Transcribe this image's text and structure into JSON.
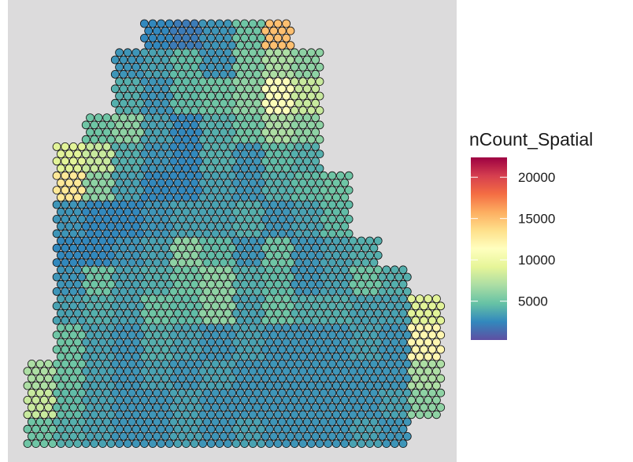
{
  "chart_data": {
    "type": "spatial",
    "legend_title": "nCount_Spatial",
    "colorbar": {
      "lim": [
        300,
        22400
      ],
      "ticks": [
        5000,
        10000,
        15000,
        20000
      ],
      "colors": [
        "#5E4FA2",
        "#3288BD",
        "#66C2A5",
        "#ABDDA4",
        "#E6F598",
        "#FFFFBF",
        "#FEE08B",
        "#FDAE61",
        "#F46D43",
        "#D53E4F",
        "#9E0142"
      ]
    },
    "grid": [
      [
        null,
        null,
        null,
        null,
        2500,
        2000,
        3000,
        5000,
        15000,
        null,
        null,
        null,
        null,
        null
      ],
      [
        null,
        null,
        null,
        3000,
        3500,
        4500,
        3000,
        5500,
        7000,
        6000,
        null,
        null,
        null,
        null
      ],
      [
        null,
        null,
        null,
        4000,
        3000,
        4500,
        5000,
        6000,
        11000,
        8000,
        null,
        null,
        null,
        null
      ],
      [
        null,
        null,
        5000,
        6000,
        3500,
        2500,
        4000,
        5000,
        7000,
        6000,
        null,
        null,
        null,
        null
      ],
      [
        null,
        9000,
        8000,
        4000,
        3000,
        2500,
        4000,
        3000,
        4500,
        4000,
        null,
        null,
        null,
        null
      ],
      [
        null,
        13000,
        6000,
        3500,
        2500,
        2500,
        3500,
        3000,
        4000,
        4500,
        5000,
        null,
        null,
        null
      ],
      [
        null,
        3000,
        2500,
        2500,
        3000,
        3500,
        3500,
        4000,
        3000,
        3500,
        4500,
        null,
        null,
        null
      ],
      [
        null,
        2500,
        2500,
        3000,
        3500,
        6000,
        4500,
        3000,
        5000,
        3000,
        3500,
        4000,
        null,
        null
      ],
      [
        null,
        3000,
        5000,
        3500,
        4000,
        5000,
        6000,
        4000,
        4500,
        3000,
        3500,
        5000,
        4000,
        null
      ],
      [
        null,
        3500,
        4000,
        3500,
        5000,
        4500,
        6000,
        3500,
        5000,
        4000,
        4000,
        3500,
        3500,
        9000
      ],
      [
        null,
        5000,
        3500,
        3000,
        4000,
        3500,
        3000,
        3500,
        3000,
        3000,
        3000,
        3500,
        3000,
        12000
      ],
      [
        7000,
        5000,
        3500,
        3000,
        3500,
        3000,
        3500,
        3000,
        3000,
        3000,
        3000,
        3000,
        3000,
        7000
      ],
      [
        8000,
        4500,
        3500,
        3000,
        3000,
        3500,
        3000,
        3000,
        3000,
        3000,
        3000,
        3000,
        3500,
        6000
      ],
      [
        5000,
        4000,
        3500,
        3000,
        3000,
        3500,
        3000,
        3500,
        3000,
        3000,
        3000,
        3500,
        3000,
        null
      ]
    ]
  }
}
